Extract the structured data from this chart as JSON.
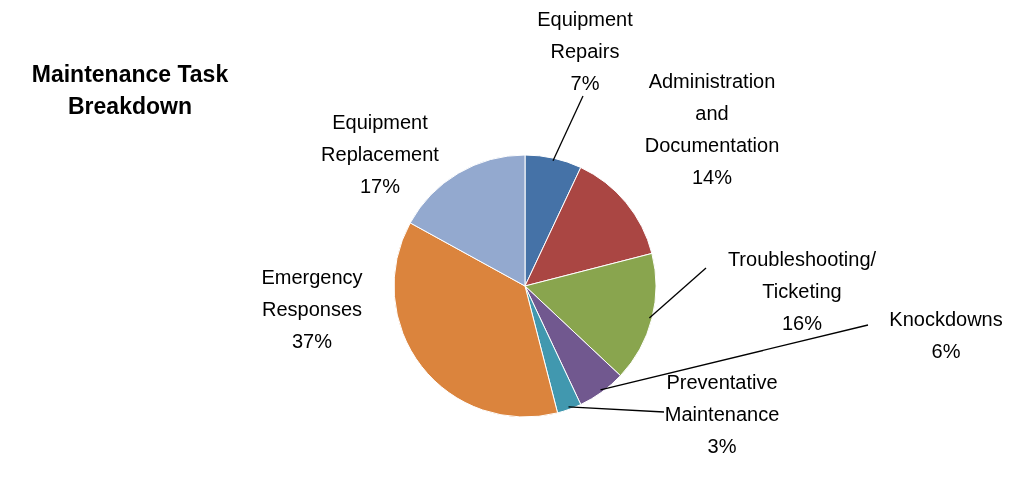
{
  "chart_data": {
    "type": "pie",
    "title": "Maintenance Task Breakdown",
    "categories": [
      "Equipment Repairs",
      "Administration and Documentation",
      "Troubleshooting/Ticketing",
      "Knockdowns",
      "Preventative Maintenance",
      "Emergency Responses",
      "Equipment Replacement"
    ],
    "values": [
      7,
      14,
      16,
      6,
      3,
      37,
      17
    ],
    "value_labels": [
      "7%",
      "14%",
      "16%",
      "6%",
      "3%",
      "37%",
      "17%"
    ],
    "colors": [
      "#4572a7",
      "#aa4643",
      "#89a54e",
      "#71588f",
      "#4198af",
      "#db843d",
      "#93a9cf"
    ],
    "legend": false
  }
}
